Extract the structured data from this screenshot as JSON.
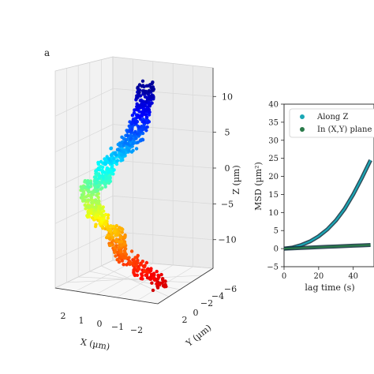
{
  "panel_label": "a",
  "chart_data": [
    {
      "type": "scatter3d",
      "xlabel": "X (µm)",
      "ylabel": "Y (µm)",
      "zlabel": "Z (µm)",
      "x_ticks": [
        "2",
        "1",
        "0",
        "−1",
        "−2"
      ],
      "y_ticks": [
        "2",
        "0",
        "−2",
        "−4",
        "−6"
      ],
      "z_ticks": [
        "10",
        "5",
        "0",
        "−5",
        "−10"
      ],
      "z_range": [
        -14,
        14
      ],
      "colormap": "jet (colored along trajectory, red at bottom to dark blue at top)",
      "grid": true,
      "trajectory_z_range": [
        -13,
        12
      ]
    },
    {
      "type": "line",
      "xlabel": "lag time (s)",
      "ylabel": "MSD (µm²)",
      "x_ticks": [
        "0",
        "20",
        "40"
      ],
      "y_ticks": [
        "40",
        "35",
        "30",
        "25",
        "20",
        "15",
        "10",
        "5",
        "0",
        "−5"
      ],
      "xlim": [
        0,
        52
      ],
      "ylim": [
        -5,
        40
      ],
      "legend_position": "upper-left",
      "series": [
        {
          "name": "Along Z",
          "color": "#1aa7b5",
          "x": [
            0,
            5,
            10,
            15,
            20,
            25,
            30,
            35,
            40,
            45,
            50
          ],
          "values": [
            0,
            0.3,
            1.0,
            2.0,
            3.4,
            5.3,
            7.8,
            11.0,
            15.0,
            19.6,
            24.5
          ]
        },
        {
          "name": "In (X,Y) plane",
          "color": "#2a7a4a",
          "x": [
            0,
            5,
            10,
            15,
            20,
            25,
            30,
            35,
            40,
            45,
            50
          ],
          "values": [
            0,
            0.1,
            0.2,
            0.3,
            0.4,
            0.5,
            0.6,
            0.7,
            0.8,
            0.9,
            1.0
          ]
        }
      ]
    }
  ]
}
